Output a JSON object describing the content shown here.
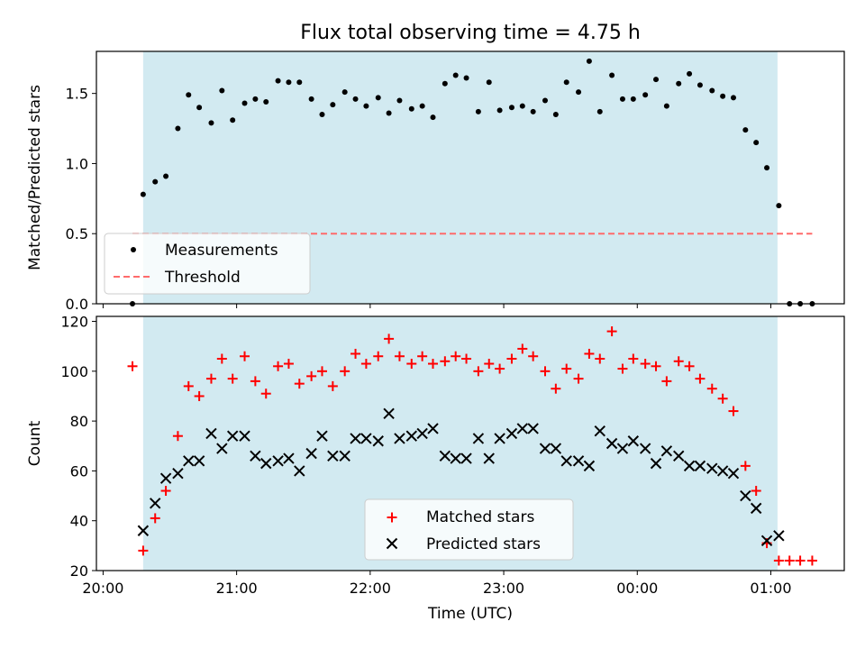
{
  "title": "Flux total observing time = 4.75 h",
  "colors": {
    "band": "#add8e6",
    "measurement": "#000000",
    "threshold": "#ff6b6b",
    "matched": "#ff0000",
    "predicted": "#000000"
  },
  "chart_data": [
    {
      "type": "scatter",
      "ylabel": "Matched/Predicted stars",
      "ylim": [
        0,
        1.8
      ],
      "yticks": [
        "0.0",
        "0.5",
        "1.0",
        "1.5"
      ],
      "xlim": [
        -0.05,
        5.55
      ],
      "shaded_region": [
        0.3,
        5.05
      ],
      "legend_position": "lower-left",
      "series": [
        {
          "name": "Measurements",
          "x": [
            0.22,
            0.3,
            0.39,
            0.47,
            0.56,
            0.64,
            0.72,
            0.81,
            0.89,
            0.97,
            1.06,
            1.14,
            1.22,
            1.31,
            1.39,
            1.47,
            1.56,
            1.64,
            1.72,
            1.81,
            1.89,
            1.97,
            2.06,
            2.14,
            2.22,
            2.31,
            2.39,
            2.47,
            2.56,
            2.64,
            2.72,
            2.81,
            2.89,
            2.97,
            3.06,
            3.14,
            3.22,
            3.31,
            3.39,
            3.47,
            3.56,
            3.64,
            3.72,
            3.81,
            3.89,
            3.97,
            4.06,
            4.14,
            4.22,
            4.31,
            4.39,
            4.47,
            4.56,
            4.64,
            4.72,
            4.81,
            4.89,
            4.97,
            5.06,
            5.14,
            5.22,
            5.31
          ],
          "y": [
            0.0,
            0.78,
            0.87,
            0.91,
            1.25,
            1.49,
            1.4,
            1.29,
            1.52,
            1.31,
            1.43,
            1.46,
            1.44,
            1.59,
            1.58,
            1.58,
            1.46,
            1.35,
            1.42,
            1.51,
            1.46,
            1.41,
            1.47,
            1.36,
            1.45,
            1.39,
            1.41,
            1.33,
            1.57,
            1.63,
            1.61,
            1.37,
            1.58,
            1.38,
            1.4,
            1.41,
            1.37,
            1.45,
            1.35,
            1.58,
            1.51,
            1.73,
            1.37,
            1.63,
            1.46,
            1.46,
            1.49,
            1.6,
            1.41,
            1.57,
            1.64,
            1.56,
            1.52,
            1.48,
            1.47,
            1.24,
            1.15,
            0.97,
            0.7,
            0.0,
            0.0,
            0.0
          ]
        },
        {
          "name": "Threshold",
          "x": [
            0.22,
            5.31
          ],
          "y": [
            0.5,
            0.5
          ]
        }
      ]
    },
    {
      "type": "scatter",
      "xlabel": "Time (UTC)",
      "ylabel": "Count",
      "ylim": [
        20,
        122
      ],
      "yticks": [
        "20",
        "40",
        "60",
        "80",
        "100",
        "120"
      ],
      "xlim": [
        -0.05,
        5.55
      ],
      "xticks": [
        "20:00",
        "21:00",
        "22:00",
        "23:00",
        "00:00",
        "01:00"
      ],
      "shaded_region": [
        0.3,
        5.05
      ],
      "legend_position": "lower-center",
      "series": [
        {
          "name": "Matched stars",
          "x": [
            0.22,
            0.3,
            0.39,
            0.47,
            0.56,
            0.64,
            0.72,
            0.81,
            0.89,
            0.97,
            1.06,
            1.14,
            1.22,
            1.31,
            1.39,
            1.47,
            1.56,
            1.64,
            1.72,
            1.81,
            1.89,
            1.97,
            2.06,
            2.14,
            2.22,
            2.31,
            2.39,
            2.47,
            2.56,
            2.64,
            2.72,
            2.81,
            2.89,
            2.97,
            3.06,
            3.14,
            3.22,
            3.31,
            3.39,
            3.47,
            3.56,
            3.64,
            3.72,
            3.81,
            3.89,
            3.97,
            4.06,
            4.14,
            4.22,
            4.31,
            4.39,
            4.47,
            4.56,
            4.64,
            4.72,
            4.81,
            4.89,
            4.97,
            5.06,
            5.14,
            5.22,
            5.31
          ],
          "y": [
            102,
            28,
            41,
            52,
            74,
            94,
            90,
            97,
            105,
            97,
            106,
            96,
            91,
            102,
            103,
            95,
            98,
            100,
            94,
            100,
            107,
            103,
            106,
            113,
            106,
            103,
            106,
            103,
            104,
            106,
            105,
            100,
            103,
            101,
            105,
            109,
            106,
            100,
            93,
            101,
            97,
            107,
            105,
            116,
            101,
            105,
            103,
            102,
            96,
            104,
            102,
            97,
            93,
            89,
            84,
            62,
            52,
            31,
            24,
            24,
            24,
            24
          ]
        },
        {
          "name": "Predicted stars",
          "x": [
            0.3,
            0.39,
            0.47,
            0.56,
            0.64,
            0.72,
            0.81,
            0.89,
            0.97,
            1.06,
            1.14,
            1.22,
            1.31,
            1.39,
            1.47,
            1.56,
            1.64,
            1.72,
            1.81,
            1.89,
            1.97,
            2.06,
            2.14,
            2.22,
            2.31,
            2.39,
            2.47,
            2.56,
            2.64,
            2.72,
            2.81,
            2.89,
            2.97,
            3.06,
            3.14,
            3.22,
            3.31,
            3.39,
            3.47,
            3.56,
            3.64,
            3.72,
            3.81,
            3.89,
            3.97,
            4.06,
            4.14,
            4.22,
            4.31,
            4.39,
            4.47,
            4.56,
            4.64,
            4.72,
            4.81,
            4.89,
            4.97,
            5.06
          ],
          "y": [
            36,
            47,
            57,
            59,
            64,
            64,
            75,
            69,
            74,
            74,
            66,
            63,
            64,
            65,
            60,
            67,
            74,
            66,
            66,
            73,
            73,
            72,
            83,
            73,
            74,
            75,
            77,
            66,
            65,
            65,
            73,
            65,
            73,
            75,
            77,
            77,
            69,
            69,
            64,
            64,
            62,
            76,
            71,
            69,
            72,
            69,
            63,
            68,
            66,
            62,
            62,
            61,
            60,
            59,
            50,
            45,
            32,
            34
          ]
        }
      ]
    }
  ]
}
